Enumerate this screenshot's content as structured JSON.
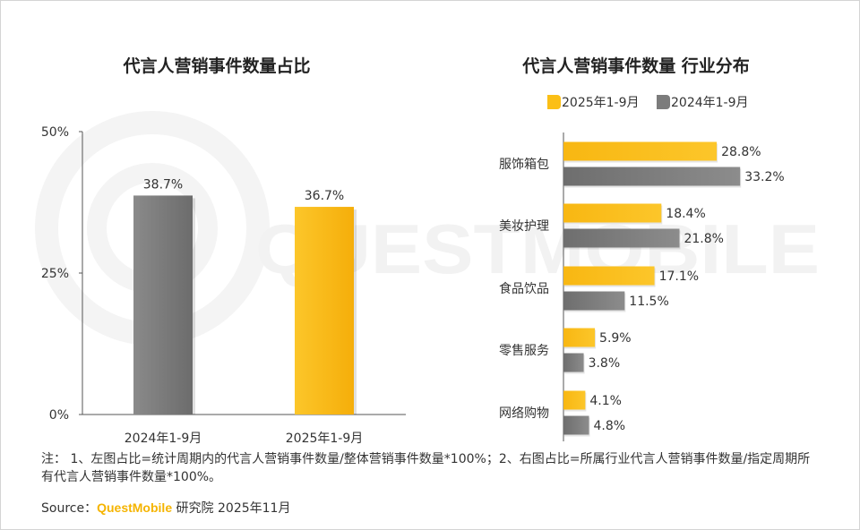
{
  "colors": {
    "gold": "#fbbf16",
    "grey": "#7c7c7c",
    "axis": "#555555",
    "text": "#333333",
    "brand": "#f5b400",
    "watermark": "#f2f2f2"
  },
  "watermark": "QUESTMOBILE",
  "chart_data": [
    {
      "type": "bar",
      "title": "代言人营销事件数量占比",
      "categories": [
        "2024年1-9月",
        "2025年1-9月"
      ],
      "values": [
        38.7,
        36.7
      ],
      "value_labels": [
        "38.7%",
        "36.7%"
      ],
      "bar_colors": [
        "#7c7c7c",
        "#fbbf16"
      ],
      "ylim": [
        0,
        50
      ],
      "yticks": [
        0,
        25,
        50
      ],
      "ytick_labels": [
        "0%",
        "25%",
        "50%"
      ],
      "grid": false
    },
    {
      "type": "bar",
      "orientation": "horizontal",
      "title": "代言人营销事件数量 行业分布",
      "legend_position": "top",
      "categories": [
        "服饰箱包",
        "美妆护理",
        "食品饮品",
        "零售服务",
        "网络购物"
      ],
      "series": [
        {
          "name": "2025年1-9月",
          "color": "#fbbf16",
          "values": [
            28.8,
            18.4,
            17.1,
            5.9,
            4.1
          ],
          "labels": [
            "28.8%",
            "18.4%",
            "17.1%",
            "5.9%",
            "4.1%"
          ]
        },
        {
          "name": "2024年1-9月",
          "color": "#7c7c7c",
          "values": [
            33.2,
            21.8,
            11.5,
            3.8,
            4.8
          ],
          "labels": [
            "33.2%",
            "21.8%",
            "11.5%",
            "3.8%",
            "4.8%"
          ]
        }
      ],
      "xlim": [
        0,
        40
      ],
      "grid": false
    }
  ],
  "footer": {
    "note": "注： 1、左图占比=统计周期内的代言人营销事件数量/整体营销事件数量*100%；2、右图占比=所属行业代言人营销事件数量/指定周期所有代言人营销事件数量*100%。",
    "source_prefix": "Source：",
    "source_brand": "QuestMobile",
    "source_suffix": " 研究院 2025年11月"
  }
}
